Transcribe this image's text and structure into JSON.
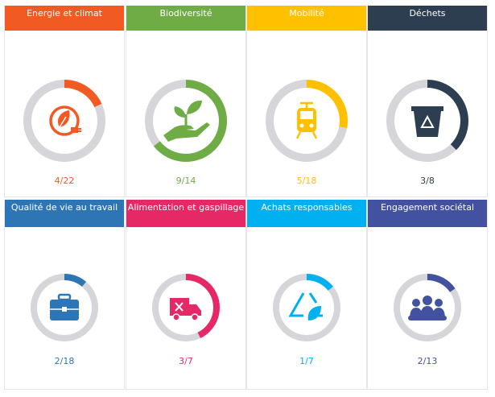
{
  "tiles": [
    {
      "title": "Energie et climat",
      "done": 4,
      "total": 22,
      "label": "4/22",
      "color": "#f15a22",
      "icon": "leaf-plug-icon"
    },
    {
      "title": "Biodiversité",
      "done": 9,
      "total": 14,
      "label": "9/14",
      "color": "#6fac46",
      "icon": "hand-plant-icon"
    },
    {
      "title": "Mobilité",
      "done": 5,
      "total": 18,
      "label": "5/18",
      "color": "#ffc000",
      "icon": "tram-icon"
    },
    {
      "title": "Déchets",
      "done": 3,
      "total": 8,
      "label": "3/8",
      "color": "#2c3e50",
      "icon": "recycle-bin-icon"
    },
    {
      "title": "Qualité de vie au travail",
      "done": 2,
      "total": 18,
      "label": "2/18",
      "color": "#2e75b6",
      "icon": "briefcase-icon"
    },
    {
      "title": "Alimentation et gaspillage",
      "done": 3,
      "total": 7,
      "label": "3/7",
      "color": "#e72866",
      "icon": "food-truck-icon"
    },
    {
      "title": "Achats responsables",
      "done": 1,
      "total": 7,
      "label": "1/7",
      "color": "#00b0f0",
      "icon": "recycle-leaf-icon"
    },
    {
      "title": "Engagement sociétal",
      "done": 2,
      "total": 13,
      "label": "2/13",
      "color": "#4352a0",
      "icon": "people-group-icon"
    }
  ]
}
